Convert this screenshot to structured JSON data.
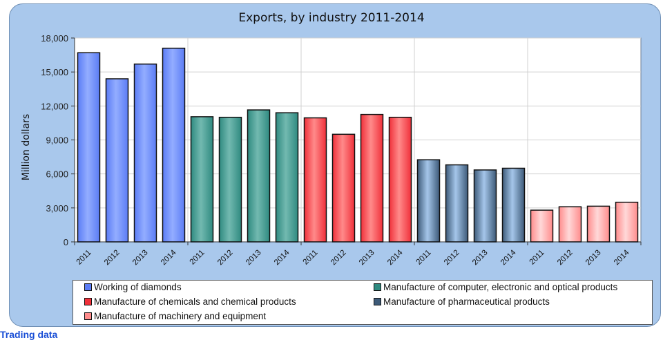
{
  "chart_data": {
    "type": "bar",
    "title": "Exports, by industry 2011-2014",
    "xlabel": "",
    "ylabel": "Million dollars",
    "ylim": [
      0,
      18000
    ],
    "yticks": [
      "0",
      "3,000",
      "6,000",
      "9,000",
      "12,000",
      "15,000",
      "18,000"
    ],
    "ytick_values": [
      0,
      3000,
      6000,
      9000,
      12000,
      15000,
      18000
    ],
    "categories": [
      "2011",
      "2012",
      "2013",
      "2014"
    ],
    "grid": true,
    "legend_position": "bottom",
    "series": [
      {
        "name": "Working of diamonds",
        "color": "#5b7cf5",
        "light": "#93adff",
        "values": [
          16700,
          14400,
          15700,
          17100
        ]
      },
      {
        "name": "Manufacture of computer, electronic and optical products",
        "color": "#2f8a80",
        "light": "#72b9b0",
        "values": [
          11050,
          11000,
          11650,
          11400
        ]
      },
      {
        "name": "Manufacture of chemicals and chemical products",
        "color": "#f0303a",
        "light": "#ff8a8a",
        "values": [
          10950,
          9500,
          11250,
          11000
        ]
      },
      {
        "name": "Manufacture of  pharmaceutical products",
        "color": "#3d5a78",
        "light": "#a5c6ea",
        "values": [
          7250,
          6800,
          6350,
          6500
        ]
      },
      {
        "name": "Manufacture of machinery and equipment",
        "color": "#ff8c8c",
        "light": "#ffd8d8",
        "values": [
          2800,
          3100,
          3150,
          3500
        ]
      }
    ]
  },
  "footer": {
    "text": "Trading data"
  }
}
